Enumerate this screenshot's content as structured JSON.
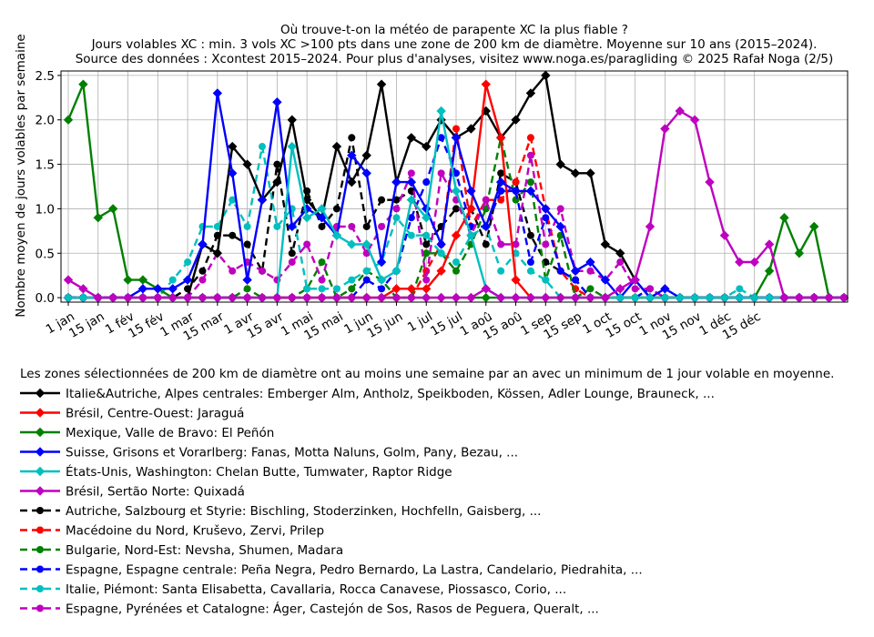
{
  "chart_data": {
    "type": "line",
    "title": [
      "Où trouve-t-on la météo de parapente XC la plus fiable ?",
      "Jours volables XC : min. 3 vols XC >100 pts dans une zone de 200 km de diamètre. Moyenne sur 10 ans (2015–2024).",
      "Source des données : Xcontest 2015–2024. Pour plus d'analyses, visitez www.noga.es/paragliding © 2025 Rafał Noga (2/5)"
    ],
    "ylabel": "Nombre moyen de jours volables par semaine",
    "xlabel": "",
    "ylim": [
      -0.05,
      2.55
    ],
    "xlim": [
      0,
      52
    ],
    "yticks": [
      0.0,
      0.5,
      1.0,
      1.5,
      2.0,
      2.5
    ],
    "ytick_labels": [
      "0.0",
      "0.5",
      "1.0",
      "1.5",
      "2.0",
      "2.5"
    ],
    "xticks": [
      {
        "x": 0,
        "label": "1 jan"
      },
      {
        "x": 2,
        "label": "15 jan"
      },
      {
        "x": 4,
        "label": "1 fév"
      },
      {
        "x": 6,
        "label": "15 fév"
      },
      {
        "x": 8,
        "label": "1 mar"
      },
      {
        "x": 10,
        "label": "15 mar"
      },
      {
        "x": 12,
        "label": "1 avr"
      },
      {
        "x": 14,
        "label": "15 avr"
      },
      {
        "x": 16,
        "label": "1 mai"
      },
      {
        "x": 18,
        "label": "15 mai"
      },
      {
        "x": 20,
        "label": "1 jun"
      },
      {
        "x": 22,
        "label": "15 jun"
      },
      {
        "x": 24,
        "label": "1 jul"
      },
      {
        "x": 26,
        "label": "15 jul"
      },
      {
        "x": 28,
        "label": "1 aoû"
      },
      {
        "x": 30,
        "label": "15 aoû"
      },
      {
        "x": 32,
        "label": "1 sep"
      },
      {
        "x": 34,
        "label": "15 sep"
      },
      {
        "x": 36,
        "label": "1 oct"
      },
      {
        "x": 38,
        "label": "15 oct"
      },
      {
        "x": 40,
        "label": "1 nov"
      },
      {
        "x": 42,
        "label": "15 nov"
      },
      {
        "x": 44,
        "label": "1 déc"
      },
      {
        "x": 46,
        "label": "15 déc"
      }
    ],
    "grid": true,
    "legend_position": "below",
    "legend_title": "Les zones sélectionnées de 200 km de diamètre ont au moins une semaine par an avec un minimum de 1 jour volable en moyenne.",
    "series": [
      {
        "name": "Italie&Autriche, Alpes centrales: Emberger Alm, Antholz, Speikboden, Kössen, Adler Lounge, Brauneck, ...",
        "color": "#000000",
        "dashed": false,
        "marker": "diamond",
        "values": [
          0,
          0,
          0,
          0,
          0,
          0,
          0,
          0,
          0,
          0.6,
          0.5,
          1.7,
          1.5,
          1.1,
          1.3,
          2.0,
          1.1,
          0.9,
          1.7,
          1.3,
          1.6,
          2.4,
          1.3,
          1.8,
          1.7,
          2.0,
          1.8,
          1.9,
          2.1,
          1.8,
          2.0,
          2.3,
          2.5,
          1.5,
          1.4,
          1.4,
          0.6,
          0.5,
          0.2,
          0,
          0,
          0,
          0,
          0,
          0,
          0,
          0,
          0,
          0,
          0,
          0,
          0,
          0
        ]
      },
      {
        "name": "Brésil, Centre-Ouest: Jaraguá",
        "color": "#ff0000",
        "dashed": false,
        "marker": "diamond",
        "values": [
          0,
          0,
          0,
          0,
          0,
          0,
          0,
          0,
          0,
          0,
          0,
          0,
          0,
          0,
          0,
          0,
          0,
          0,
          0,
          0,
          0,
          0,
          0.1,
          0.1,
          0.1,
          0.3,
          0.7,
          1.0,
          2.4,
          1.8,
          0.2,
          0,
          0,
          0,
          0,
          0,
          0,
          0,
          0,
          0,
          0,
          0,
          0,
          0,
          0,
          0,
          0,
          0,
          0,
          0,
          0,
          0,
          0
        ]
      },
      {
        "name": "Mexique, Valle de Bravo: El Peñón",
        "color": "#008000",
        "dashed": false,
        "marker": "diamond",
        "values": [
          2.0,
          2.4,
          0.9,
          1.0,
          0.2,
          0.2,
          0.1,
          0,
          0,
          0,
          0,
          0,
          0,
          0,
          0,
          0,
          0,
          0,
          0,
          0,
          0,
          0,
          0,
          0,
          0,
          0,
          0,
          0,
          0,
          0,
          0,
          0,
          0,
          0,
          0,
          0,
          0,
          0,
          0,
          0,
          0,
          0,
          0,
          0,
          0,
          0,
          0,
          0.3,
          0.9,
          0.5,
          0.8,
          0,
          0
        ]
      },
      {
        "name": "Suisse, Grisons et Vorarlberg: Fanas, Motta Naluns, Golm, Pany, Bezau, ...",
        "color": "#0000ff",
        "dashed": false,
        "marker": "diamond",
        "values": [
          0,
          0,
          0,
          0,
          0,
          0.1,
          0.1,
          0.1,
          0.2,
          0.6,
          2.3,
          1.4,
          0.2,
          1.1,
          2.2,
          0.8,
          1.0,
          0.9,
          0.7,
          1.6,
          1.4,
          0.4,
          1.3,
          1.3,
          1.0,
          0.6,
          1.8,
          1.2,
          0.8,
          1.3,
          1.2,
          1.2,
          1.0,
          0.8,
          0.3,
          0.4,
          0.2,
          0,
          0.2,
          0,
          0.1,
          0,
          0,
          0,
          0,
          0,
          0,
          0,
          0,
          0,
          0,
          0,
          0
        ]
      },
      {
        "name": "États-Unis, Washington: Chelan Butte, Tumwater, Raptor Ridge",
        "color": "#00bfbf",
        "dashed": false,
        "marker": "diamond",
        "values": [
          0,
          0,
          0,
          0,
          0,
          0,
          0,
          0,
          0,
          0,
          0,
          0,
          0,
          0,
          0,
          1.7,
          0.9,
          1.0,
          0.7,
          0.6,
          0.6,
          0.2,
          0.3,
          1.1,
          0.9,
          2.1,
          1.2,
          0.7,
          0.1,
          0,
          0,
          0,
          0,
          0,
          0,
          0,
          0,
          0,
          0,
          0,
          0,
          0,
          0,
          0,
          0,
          0,
          0,
          0,
          0,
          0,
          0,
          0,
          0
        ]
      },
      {
        "name": "Brésil, Sertão Norte: Quixadá",
        "color": "#bf00bf",
        "dashed": false,
        "marker": "diamond",
        "values": [
          0.2,
          0.1,
          0,
          0,
          0,
          0,
          0,
          0,
          0,
          0,
          0,
          0,
          0,
          0,
          0,
          0,
          0,
          0,
          0,
          0,
          0,
          0,
          0,
          0,
          0,
          0,
          0,
          0,
          0.1,
          0,
          0,
          0,
          0,
          0,
          0,
          0,
          0,
          0.1,
          0.2,
          0.8,
          1.9,
          2.1,
          2.0,
          1.3,
          0.7,
          0.4,
          0.4,
          0.6,
          0,
          0,
          0,
          0,
          0
        ]
      },
      {
        "name": "Autriche, Salzbourg et Styrie: Bischling, Stoderzinken, Hochfelln, Gaisberg, ...",
        "color": "#000000",
        "dashed": true,
        "marker": "circle",
        "values": [
          0,
          0,
          0,
          0,
          0,
          0,
          0,
          0,
          0.1,
          0.3,
          0.7,
          0.7,
          0.6,
          0.3,
          1.5,
          0.5,
          1.2,
          0.8,
          1.0,
          1.8,
          0.8,
          1.1,
          1.1,
          1.2,
          0.6,
          0.8,
          1.0,
          1.0,
          0.6,
          1.4,
          1.3,
          0.7,
          0.4,
          0.3,
          0.2,
          0,
          0,
          0,
          0,
          0,
          0,
          0,
          0,
          0,
          0,
          0,
          0,
          0,
          0,
          0,
          0,
          0,
          0
        ]
      },
      {
        "name": "Macédoine du Nord, Kruševo, Zervi, Prilep",
        "color": "#ff0000",
        "dashed": true,
        "marker": "circle",
        "values": [
          0,
          0,
          0,
          0,
          0,
          0,
          0,
          0,
          0,
          0,
          0,
          0,
          0,
          0,
          0,
          0,
          0,
          0,
          0,
          0,
          0,
          0,
          0,
          0,
          0.3,
          0.6,
          1.9,
          0.8,
          1.1,
          1.1,
          1.3,
          1.8,
          1.0,
          0.3,
          0.1,
          0,
          0,
          0,
          0,
          0,
          0,
          0,
          0,
          0,
          0,
          0,
          0,
          0,
          0,
          0,
          0,
          0,
          0
        ]
      },
      {
        "name": "Bulgarie, Nord-Est: Nevsha, Shumen, Madara",
        "color": "#008000",
        "dashed": true,
        "marker": "circle",
        "values": [
          0,
          0,
          0,
          0,
          0,
          0,
          0,
          0,
          0,
          0,
          0,
          0,
          0.1,
          0,
          0,
          0,
          0.1,
          0.4,
          0,
          0.1,
          0.3,
          0.2,
          0,
          0,
          0.5,
          0.5,
          0.3,
          0.6,
          1.0,
          1.8,
          1.1,
          1.3,
          0.2,
          0.7,
          0,
          0.1,
          0,
          0,
          0,
          0,
          0,
          0,
          0,
          0,
          0,
          0,
          0,
          0,
          0,
          0,
          0,
          0,
          0
        ]
      },
      {
        "name": "Espagne, Espagne centrale: Peña Negra, Pedro Bernardo, La Lastra, Candelario, Piedrahita, ...",
        "color": "#0000ff",
        "dashed": true,
        "marker": "circle",
        "values": [
          0,
          0,
          0,
          0,
          0,
          0,
          0,
          0,
          0,
          0,
          0,
          0,
          0,
          0,
          0,
          0,
          0,
          0,
          0,
          0,
          0.2,
          0.1,
          0.3,
          0.9,
          1.3,
          1.8,
          1.4,
          0.8,
          0.8,
          1.2,
          1.2,
          0.4,
          0.9,
          0.3,
          0.2,
          0,
          0,
          0,
          0,
          0.1,
          0,
          0,
          0,
          0,
          0,
          0,
          0,
          0,
          0,
          0,
          0,
          0,
          0
        ]
      },
      {
        "name": "Italie, Piémont: Santa Elisabetta, Cavallaria, Rocca Canavese, Piossasco, Corio, ...",
        "color": "#00bfbf",
        "dashed": true,
        "marker": "circle",
        "values": [
          0,
          0,
          0,
          0,
          0,
          0,
          0,
          0.2,
          0.4,
          0.8,
          0.8,
          1.1,
          0.8,
          1.7,
          0.8,
          1.0,
          0.1,
          0.1,
          0.1,
          0.2,
          0.3,
          0.4,
          0.9,
          0.7,
          0.7,
          0.5,
          0.4,
          0.7,
          0.8,
          0.3,
          0.5,
          0.3,
          0.2,
          0,
          0,
          0,
          0,
          0,
          0,
          0,
          0,
          0,
          0,
          0,
          0,
          0.1,
          0,
          0,
          0,
          0,
          0,
          0,
          0
        ]
      },
      {
        "name": "Espagne, Pyrénées et Catalogne: Áger, Castejón de Sos, Rasos de Peguera, Queralt, ...",
        "color": "#bf00bf",
        "dashed": true,
        "marker": "circle",
        "values": [
          0,
          0,
          0,
          0,
          0,
          0,
          0,
          0,
          0,
          0.2,
          0.5,
          0.3,
          0.4,
          0.3,
          0.2,
          0.4,
          0.6,
          0.2,
          0.8,
          0.8,
          0.5,
          0.8,
          1.0,
          1.4,
          0.2,
          1.4,
          1.1,
          0.7,
          1.1,
          0.6,
          0.6,
          1.6,
          0.6,
          1.0,
          0.3,
          0.3,
          0.2,
          0.4,
          0.1,
          0.1,
          0,
          0,
          0,
          0,
          0,
          0,
          0,
          0,
          0,
          0,
          0,
          0,
          0
        ]
      }
    ]
  }
}
